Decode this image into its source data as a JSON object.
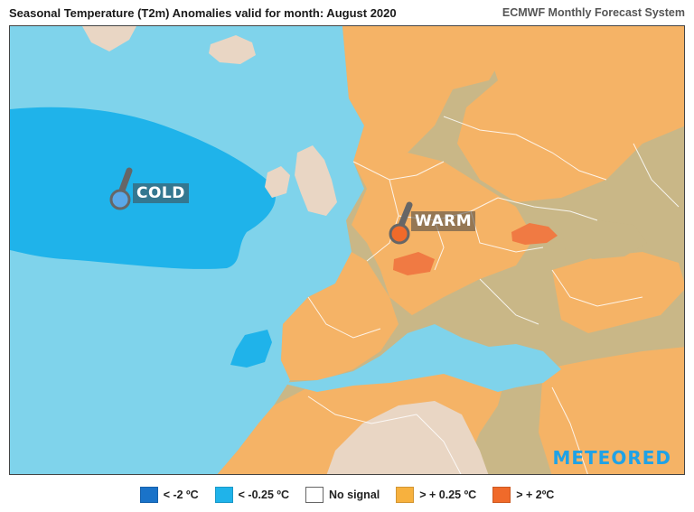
{
  "header": {
    "title": "Seasonal Temperature (T2m) Anomalies valid for month: August 2020",
    "source": "ECMWF Monthly Forecast System"
  },
  "map": {
    "cold_label": "COLD",
    "warm_label": "WARM",
    "brand": "METEORED",
    "colors": {
      "ocean": "#7fd3eb",
      "land_neutral": "#c9b787",
      "warm": "#f5b366",
      "hot": "#f07a43",
      "cold_strong": "#1fb3ea",
      "desert_no_signal": "#e9d6c4",
      "border": "#ffffff"
    }
  },
  "legend": {
    "items": [
      {
        "label": "< -2 ºC",
        "color": "#1a73c9"
      },
      {
        "label": "< -0.25 ºC",
        "color": "#1fb3ea"
      },
      {
        "label": "No signal",
        "color": "#ffffff"
      },
      {
        "label": "> + 0.25 ºC",
        "color": "#f7b13e"
      },
      {
        "label": "> + 2ºC",
        "color": "#f06a2a"
      }
    ]
  }
}
